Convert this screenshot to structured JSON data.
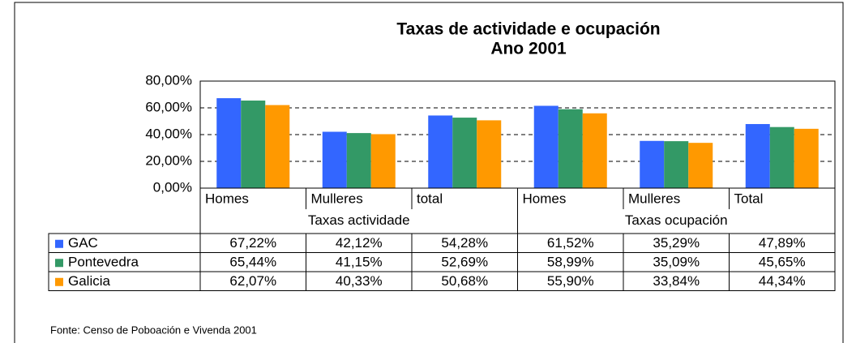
{
  "chart_data": {
    "type": "bar",
    "title": "Taxas de actividade e ocupación",
    "subtitle": "Ano 2001",
    "categories": [
      "Homes",
      "Mulleres",
      "total",
      "Homes",
      "Mulleres",
      "Total"
    ],
    "groups": [
      "Taxas actividade",
      "Taxas ocupación"
    ],
    "series": [
      {
        "name": "GAC",
        "color": "#3366ff",
        "values": [
          67.22,
          42.12,
          54.28,
          61.52,
          35.29,
          47.89
        ],
        "value_labels": [
          "67,22%",
          "42,12%",
          "54,28%",
          "61,52%",
          "35,29%",
          "47,89%"
        ]
      },
      {
        "name": "Pontevedra",
        "color": "#339966",
        "values": [
          65.44,
          41.15,
          52.69,
          58.99,
          35.09,
          45.65
        ],
        "value_labels": [
          "65,44%",
          "41,15%",
          "52,69%",
          "58,99%",
          "35,09%",
          "45,65%"
        ]
      },
      {
        "name": "Galicia",
        "color": "#ff9900",
        "values": [
          62.07,
          40.33,
          50.68,
          55.9,
          33.84,
          44.34
        ],
        "value_labels": [
          "62,07%",
          "40,33%",
          "50,68%",
          "55,90%",
          "33,84%",
          "44,34%"
        ]
      }
    ],
    "ylim": [
      0,
      80
    ],
    "yticks": [
      {
        "value": 0,
        "label": "0,00%"
      },
      {
        "value": 20,
        "label": "20,00%"
      },
      {
        "value": 40,
        "label": "40,00%"
      },
      {
        "value": 60,
        "label": "60,00%"
      },
      {
        "value": 80,
        "label": "80,00%"
      }
    ],
    "grid": true,
    "source": "Fonte: Censo de Poboación e Vivenda 2001"
  }
}
